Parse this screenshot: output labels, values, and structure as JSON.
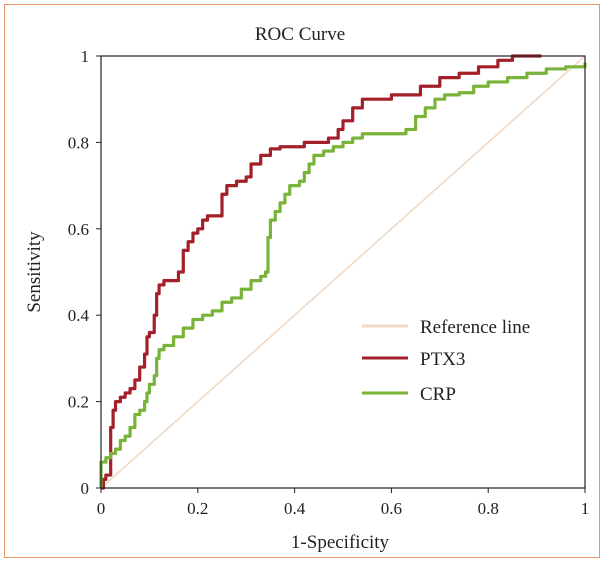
{
  "chart_data": {
    "type": "line",
    "title": "ROC Curve",
    "xlabel": "1-Specificity",
    "ylabel": "Sensitivity",
    "xlim": [
      0,
      1
    ],
    "ylim": [
      0,
      1
    ],
    "xticks": [
      0,
      0.2,
      0.4,
      0.6,
      0.8,
      1
    ],
    "yticks": [
      0,
      0.2,
      0.4,
      0.6,
      0.8,
      1
    ],
    "xtick_labels": [
      "0",
      "0.2",
      "0.4",
      "0.6",
      "0.8",
      "1"
    ],
    "ytick_labels": [
      "0",
      "0.2",
      "0.4",
      "0.6",
      "0.8",
      "1"
    ],
    "grid": false,
    "legend_position": "bottom-right",
    "series": [
      {
        "name": "Reference line",
        "color": "#f0d9c4",
        "points": [
          [
            0,
            0
          ],
          [
            1,
            1
          ]
        ]
      },
      {
        "name": "PTX3",
        "color": "#a3202b",
        "points": [
          [
            0,
            0
          ],
          [
            0.005,
            0.02
          ],
          [
            0.01,
            0.03
          ],
          [
            0.02,
            0.04
          ],
          [
            0.02,
            0.14
          ],
          [
            0.025,
            0.18
          ],
          [
            0.03,
            0.2
          ],
          [
            0.04,
            0.21
          ],
          [
            0.05,
            0.22
          ],
          [
            0.06,
            0.23
          ],
          [
            0.07,
            0.25
          ],
          [
            0.08,
            0.28
          ],
          [
            0.09,
            0.31
          ],
          [
            0.095,
            0.35
          ],
          [
            0.1,
            0.36
          ],
          [
            0.11,
            0.4
          ],
          [
            0.115,
            0.45
          ],
          [
            0.12,
            0.47
          ],
          [
            0.13,
            0.48
          ],
          [
            0.15,
            0.48
          ],
          [
            0.16,
            0.5
          ],
          [
            0.17,
            0.55
          ],
          [
            0.18,
            0.57
          ],
          [
            0.19,
            0.59
          ],
          [
            0.2,
            0.6
          ],
          [
            0.21,
            0.62
          ],
          [
            0.22,
            0.63
          ],
          [
            0.24,
            0.63
          ],
          [
            0.25,
            0.68
          ],
          [
            0.26,
            0.7
          ],
          [
            0.28,
            0.71
          ],
          [
            0.3,
            0.72
          ],
          [
            0.31,
            0.75
          ],
          [
            0.33,
            0.77
          ],
          [
            0.35,
            0.785
          ],
          [
            0.37,
            0.79
          ],
          [
            0.4,
            0.79
          ],
          [
            0.42,
            0.8
          ],
          [
            0.45,
            0.8
          ],
          [
            0.47,
            0.81
          ],
          [
            0.49,
            0.83
          ],
          [
            0.5,
            0.85
          ],
          [
            0.52,
            0.88
          ],
          [
            0.54,
            0.9
          ],
          [
            0.58,
            0.9
          ],
          [
            0.6,
            0.91
          ],
          [
            0.64,
            0.91
          ],
          [
            0.66,
            0.93
          ],
          [
            0.7,
            0.95
          ],
          [
            0.74,
            0.96
          ],
          [
            0.78,
            0.975
          ],
          [
            0.82,
            0.99
          ],
          [
            0.85,
            1
          ],
          [
            0.91,
            1
          ]
        ]
      },
      {
        "name": "CRP",
        "color": "#7ab33a",
        "points": [
          [
            0,
            0
          ],
          [
            0,
            0.06
          ],
          [
            0.01,
            0.07
          ],
          [
            0.02,
            0.08
          ],
          [
            0.03,
            0.09
          ],
          [
            0.04,
            0.11
          ],
          [
            0.05,
            0.12
          ],
          [
            0.06,
            0.14
          ],
          [
            0.07,
            0.17
          ],
          [
            0.08,
            0.18
          ],
          [
            0.09,
            0.2
          ],
          [
            0.095,
            0.22
          ],
          [
            0.1,
            0.24
          ],
          [
            0.11,
            0.26
          ],
          [
            0.115,
            0.3
          ],
          [
            0.12,
            0.32
          ],
          [
            0.13,
            0.33
          ],
          [
            0.15,
            0.35
          ],
          [
            0.17,
            0.37
          ],
          [
            0.19,
            0.39
          ],
          [
            0.21,
            0.4
          ],
          [
            0.23,
            0.41
          ],
          [
            0.25,
            0.43
          ],
          [
            0.27,
            0.44
          ],
          [
            0.29,
            0.46
          ],
          [
            0.31,
            0.48
          ],
          [
            0.33,
            0.49
          ],
          [
            0.34,
            0.5
          ],
          [
            0.345,
            0.58
          ],
          [
            0.35,
            0.62
          ],
          [
            0.36,
            0.64
          ],
          [
            0.37,
            0.66
          ],
          [
            0.38,
            0.68
          ],
          [
            0.39,
            0.7
          ],
          [
            0.41,
            0.71
          ],
          [
            0.42,
            0.73
          ],
          [
            0.43,
            0.75
          ],
          [
            0.44,
            0.77
          ],
          [
            0.46,
            0.78
          ],
          [
            0.48,
            0.79
          ],
          [
            0.5,
            0.8
          ],
          [
            0.52,
            0.81
          ],
          [
            0.54,
            0.82
          ],
          [
            0.6,
            0.82
          ],
          [
            0.63,
            0.83
          ],
          [
            0.65,
            0.86
          ],
          [
            0.67,
            0.88
          ],
          [
            0.69,
            0.9
          ],
          [
            0.71,
            0.91
          ],
          [
            0.74,
            0.915
          ],
          [
            0.77,
            0.93
          ],
          [
            0.8,
            0.94
          ],
          [
            0.84,
            0.95
          ],
          [
            0.88,
            0.96
          ],
          [
            0.92,
            0.97
          ],
          [
            0.96,
            0.975
          ],
          [
            1,
            0.985
          ]
        ]
      }
    ]
  }
}
